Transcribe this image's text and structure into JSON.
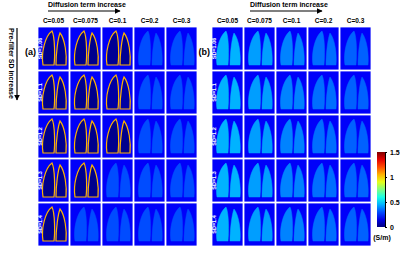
{
  "chart_data": {
    "type": "heatmap_grid",
    "x_title": "Diffusion term increase",
    "y_title": "Pre-filter SD increase",
    "columns": [
      "C=0.05",
      "C=0.075",
      "C=0.1",
      "C=0.2",
      "C=0.3"
    ],
    "rows": [
      "SD=1.06",
      "SD=1.1",
      "SD=1.2",
      "SD=1.3",
      "SD=1.4"
    ],
    "panels": [
      {
        "label": "(a)",
        "cells": [
          [
            0.02,
            0.02,
            0.03,
            0.3,
            0.3
          ],
          [
            0.02,
            0.02,
            0.05,
            0.3,
            0.3
          ],
          [
            0.02,
            0.02,
            0.02,
            0.3,
            0.3
          ],
          [
            0.02,
            0.02,
            0.3,
            0.3,
            0.3
          ],
          [
            0.02,
            0.3,
            0.3,
            0.3,
            0.3
          ]
        ]
      },
      {
        "label": "(b)",
        "cells": [
          [
            0.45,
            0.42,
            0.38,
            0.35,
            0.33
          ],
          [
            0.45,
            0.42,
            0.38,
            0.35,
            0.33
          ],
          [
            0.45,
            0.42,
            0.38,
            0.35,
            0.33
          ],
          [
            0.45,
            0.42,
            0.38,
            0.35,
            0.33
          ],
          [
            0.45,
            0.42,
            0.38,
            0.35,
            0.33
          ]
        ]
      }
    ],
    "colorbar": {
      "range": [
        0,
        1.5
      ],
      "ticks": [
        0,
        0.5,
        1,
        1.5
      ],
      "label": "(S/m)"
    }
  }
}
